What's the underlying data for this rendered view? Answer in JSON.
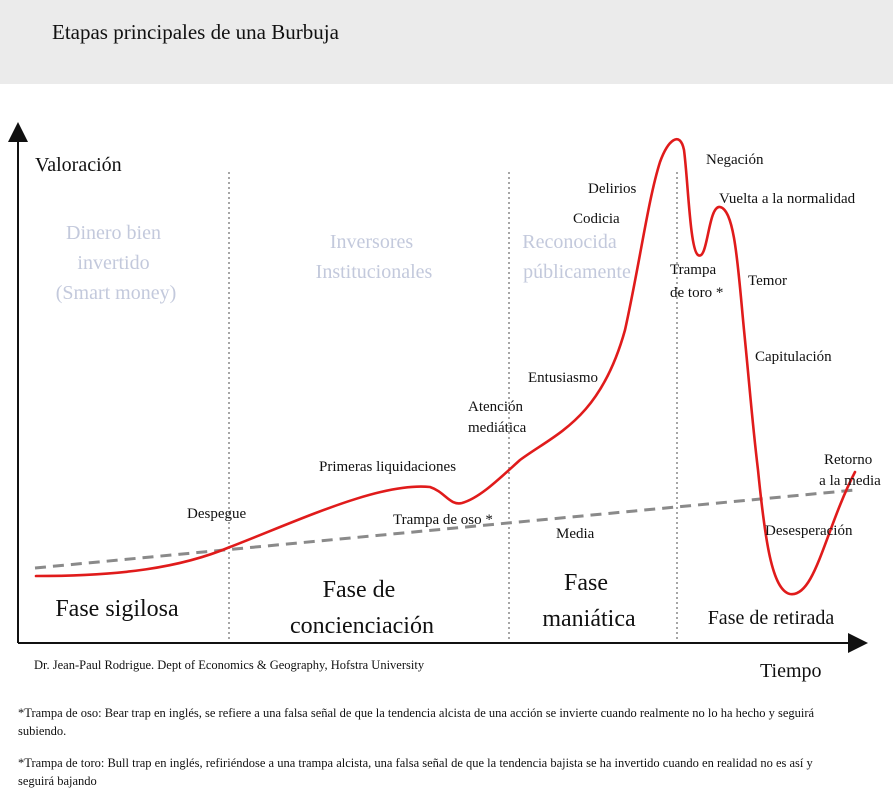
{
  "header": {
    "title": "Etapas principales de una Burbuja"
  },
  "axes": {
    "y_label": "Valoración",
    "x_label": "Tiempo"
  },
  "investors": {
    "smart_money": [
      "Dinero bien",
      "invertido",
      "(Smart money)"
    ],
    "institutional": [
      "Inversores",
      "Institucionales"
    ],
    "public": [
      "Reconocida",
      "públicamente"
    ]
  },
  "phases": {
    "stealth": [
      "Fase sigilosa"
    ],
    "awareness": [
      "Fase de",
      "concienciación"
    ],
    "mania": [
      "Fase",
      "maniática"
    ],
    "blowoff": [
      "Fase de retirada"
    ]
  },
  "events": {
    "takeoff": [
      "Despegue"
    ],
    "first_selloff": [
      "Primeras liquidaciones"
    ],
    "bear_trap": [
      "Trampa de oso *"
    ],
    "media_attention": [
      "Atención",
      "mediática"
    ],
    "enthusiasm": [
      "Entusiasmo"
    ],
    "greed": [
      "Codicia"
    ],
    "delusion": [
      "Delirios"
    ],
    "denial": [
      "Negación"
    ],
    "return_normal": [
      "Vuelta a la normalidad"
    ],
    "bull_trap": [
      "Trampa",
      "de toro *"
    ],
    "fear": [
      "Temor"
    ],
    "capitulation": [
      "Capitulación"
    ],
    "return_mean": [
      "Retorno",
      "a la media"
    ],
    "despair": [
      "Desesperación"
    ],
    "mean": [
      "Media"
    ]
  },
  "credit": "Dr. Jean-Paul Rodrigue. Dept of Economics & Geography, Hofstra University",
  "footnotes": {
    "bear": "*Trampa de oso: Bear trap en inglés, se refiere a una falsa señal de que la tendencia alcista de una acción se invierte cuando realmente no lo ha hecho y seguirá subiendo.",
    "bull": "*Trampa de toro: Bull trap en inglés, refiriéndose a una trampa alcista, una falsa señal de que la tendencia bajista se ha invertido cuando en realidad no es así y seguirá bajando"
  },
  "colors": {
    "curve": "#e01b1b",
    "mean_line": "#8a8a8a",
    "investor_label": "#c3c9dc",
    "axis": "#111111"
  }
}
